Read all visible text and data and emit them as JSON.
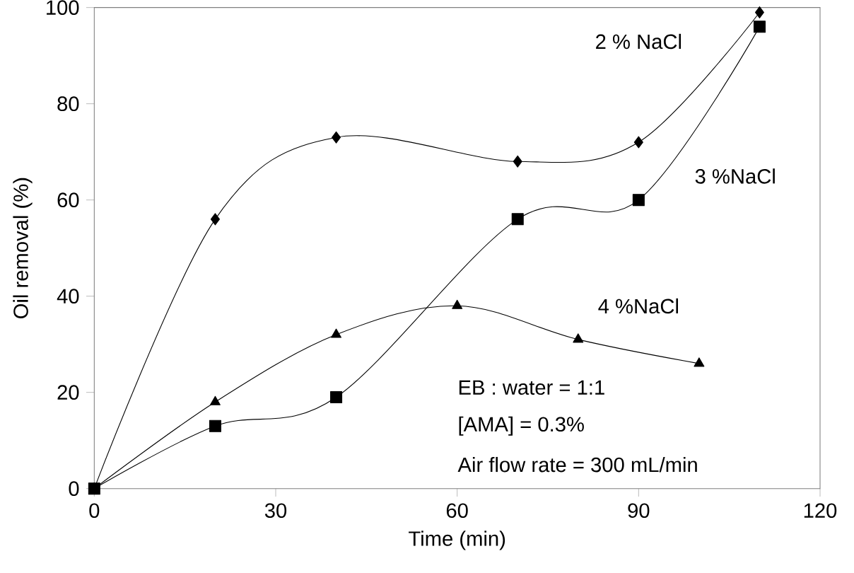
{
  "chart_data": {
    "type": "line",
    "xlabel": "Time (min)",
    "ylabel": "Oil removal (%)",
    "xlim": [
      0,
      120
    ],
    "xticks": [
      0,
      30,
      60,
      90,
      120
    ],
    "ylim": [
      0,
      100
    ],
    "yticks": [
      0,
      20,
      40,
      60,
      80,
      100
    ],
    "grid": false,
    "series": [
      {
        "name": "2 % NaCl",
        "color": "#000000",
        "marker": "diamond",
        "x": [
          0,
          20,
          40,
          70,
          90,
          110
        ],
        "values": [
          0,
          56,
          73,
          68,
          72,
          99
        ]
      },
      {
        "name": "3 %NaCl",
        "color": "#000000",
        "marker": "square",
        "x": [
          0,
          20,
          40,
          70,
          90,
          110
        ],
        "values": [
          0,
          13,
          19,
          56,
          60,
          96
        ]
      },
      {
        "name": "4 %NaCl",
        "color": "#000000",
        "marker": "triangle",
        "x": [
          0,
          20,
          40,
          60,
          80,
          100
        ],
        "values": [
          0,
          18,
          32,
          38,
          31,
          26
        ]
      }
    ],
    "annotations": [
      "EB : water = 1:1",
      "[AMA] = 0.3%",
      "Air flow rate = 300 mL/min"
    ]
  }
}
